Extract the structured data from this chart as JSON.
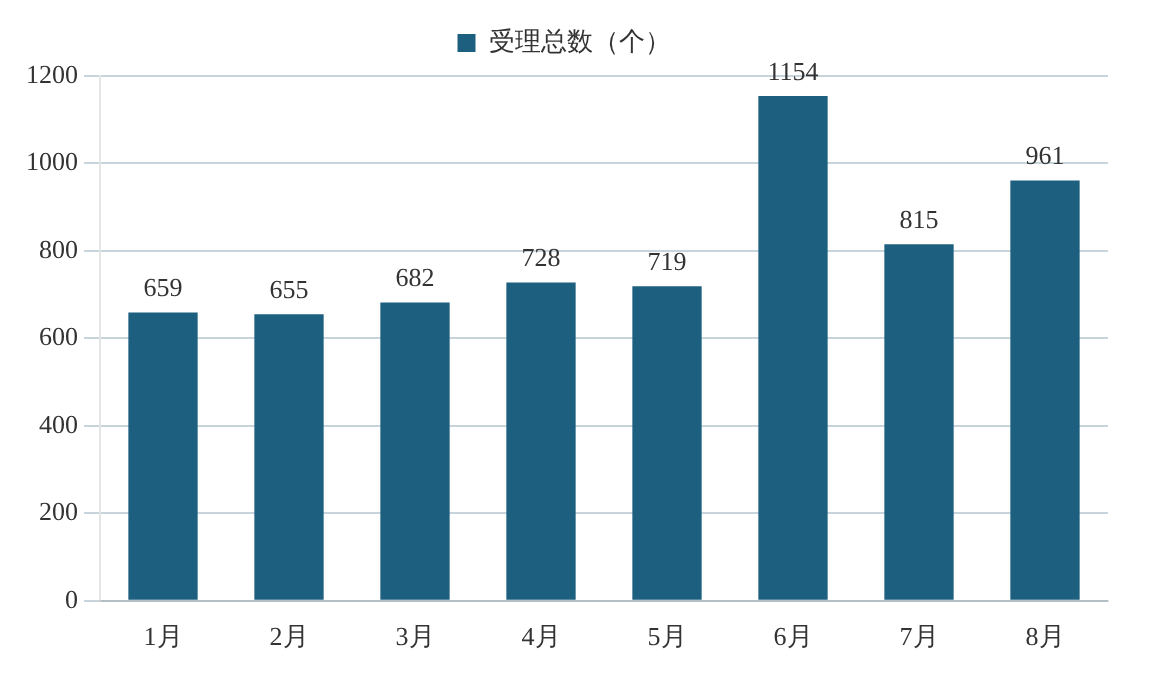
{
  "chart_data": {
    "type": "bar",
    "categories": [
      "1月",
      "2月",
      "3月",
      "4月",
      "5月",
      "6月",
      "7月",
      "8月"
    ],
    "series": [
      {
        "name": "受理总数（个）",
        "color": "#1d5f7e",
        "values": [
          659,
          655,
          682,
          728,
          719,
          1154,
          815,
          961
        ]
      }
    ],
    "ylim": [
      0,
      1200
    ],
    "yticks": [
      0,
      200,
      400,
      600,
      800,
      1000,
      1200
    ],
    "grid": "y",
    "legend": "top",
    "data_labels": true
  }
}
